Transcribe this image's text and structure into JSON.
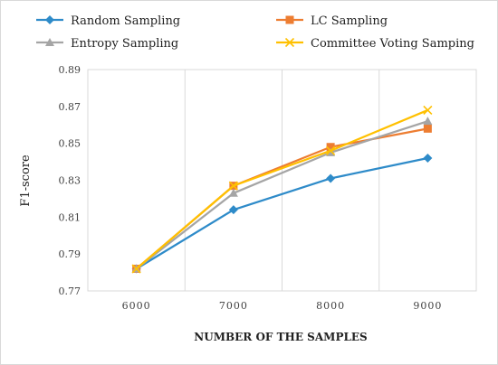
{
  "chart_data": {
    "type": "line",
    "title": "",
    "xlabel": "NUMBER OF THE SAMPLES",
    "ylabel": "F1-score",
    "categories": [
      "6000",
      "7000",
      "8000",
      "9000"
    ],
    "ylim": [
      0.77,
      0.89
    ],
    "yticks": [
      "0.77",
      "0.79",
      "0.81",
      "0.83",
      "0.85",
      "0.87",
      "0.89"
    ],
    "grid": "vertical",
    "legend_position": "top",
    "series": [
      {
        "name": "Random Sampling",
        "color": "#2e8bc9",
        "marker": "diamond",
        "values": [
          0.782,
          0.814,
          0.831,
          0.842
        ]
      },
      {
        "name": "LC Sampling",
        "color": "#ed7d31",
        "marker": "square",
        "values": [
          0.782,
          0.827,
          0.848,
          0.858
        ]
      },
      {
        "name": "Entropy Sampling",
        "color": "#a5a5a5",
        "marker": "triangle",
        "values": [
          0.782,
          0.823,
          0.845,
          0.862
        ]
      },
      {
        "name": "Committee Voting Samping",
        "color": "#ffc000",
        "marker": "x",
        "values": [
          0.782,
          0.827,
          0.846,
          0.868
        ]
      }
    ]
  }
}
